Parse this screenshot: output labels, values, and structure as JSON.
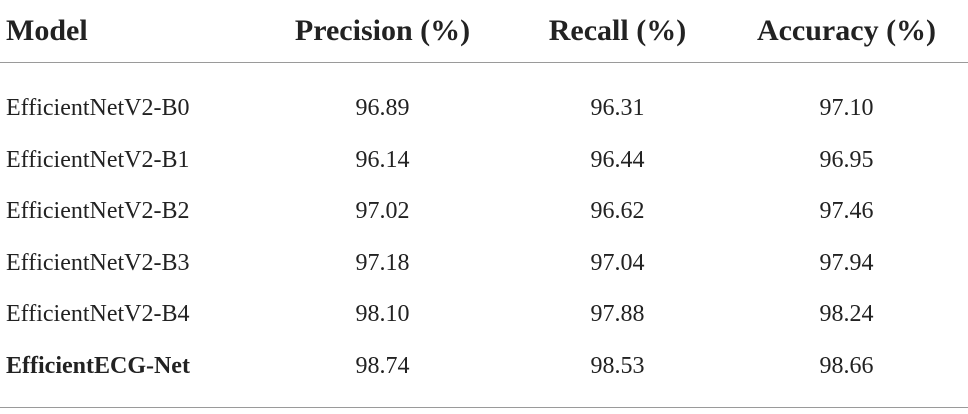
{
  "table": {
    "headers": {
      "model": "Model",
      "precision": "Precision (%)",
      "recall": "Recall (%)",
      "accuracy": "Accuracy (%)"
    },
    "rows": [
      {
        "model": "EfficientNetV2-B0",
        "precision": "96.89",
        "recall": "96.31",
        "accuracy": "97.10"
      },
      {
        "model": "EfficientNetV2-B1",
        "precision": "96.14",
        "recall": "96.44",
        "accuracy": "96.95"
      },
      {
        "model": "EfficientNetV2-B2",
        "precision": "97.02",
        "recall": "96.62",
        "accuracy": "97.46"
      },
      {
        "model": "EfficientNetV2-B3",
        "precision": "97.18",
        "recall": "97.04",
        "accuracy": "97.94"
      },
      {
        "model": "EfficientNetV2-B4",
        "precision": "98.10",
        "recall": "97.88",
        "accuracy": "98.24"
      },
      {
        "model": "EfficientECG-Net",
        "precision": "98.74",
        "recall": "98.53",
        "accuracy": "98.66",
        "bold": true
      }
    ]
  }
}
